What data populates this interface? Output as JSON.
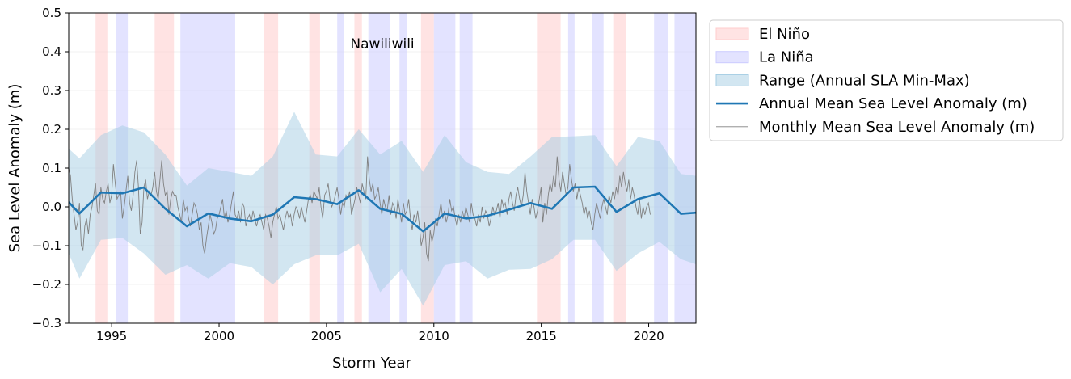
{
  "chart_data": {
    "type": "line",
    "annotation": "Nawiliwili",
    "xlabel": "Storm Year",
    "ylabel": "Sea Level Anomaly (m)",
    "xlim": [
      1993.0,
      2022.2
    ],
    "ylim": [
      -0.3,
      0.5
    ],
    "x_ticks": [
      1995,
      2000,
      2005,
      2010,
      2015,
      2020
    ],
    "y_ticks": [
      -0.3,
      -0.2,
      -0.1,
      0.0,
      0.1,
      0.2,
      0.3,
      0.4,
      0.5
    ],
    "grid": true,
    "legend_placement": "outside-right-top",
    "legend": [
      {
        "label": "El Niño",
        "kind": "patch",
        "color": "#ffcccc"
      },
      {
        "label": "La Niña",
        "kind": "patch",
        "color": "#ccccff"
      },
      {
        "label": "Range (Annual SLA Min-Max)",
        "kind": "patch",
        "color": "#a6cde4"
      },
      {
        "label": "Annual Mean Sea Level Anomaly (m)",
        "kind": "line",
        "color": "#1f77b4"
      },
      {
        "label": "Monthly Mean Sea Level Anomaly (m)",
        "kind": "thin-line",
        "color": "#808080"
      }
    ],
    "el_nino_periods": [
      [
        1994.25,
        1994.8
      ],
      [
        1997.0,
        1997.9
      ],
      [
        2002.1,
        2002.75
      ],
      [
        2004.2,
        2004.7
      ],
      [
        2006.3,
        2006.65
      ],
      [
        2009.4,
        2010.0
      ],
      [
        2014.8,
        2015.9
      ],
      [
        2018.35,
        2018.95
      ]
    ],
    "la_nina_periods": [
      [
        1995.2,
        1995.75
      ],
      [
        1998.2,
        2000.75
      ],
      [
        2005.5,
        2005.8
      ],
      [
        2006.95,
        2007.95
      ],
      [
        2008.4,
        2008.75
      ],
      [
        2010.0,
        2011.0
      ],
      [
        2011.2,
        2011.8
      ],
      [
        2016.25,
        2016.55
      ],
      [
        2017.35,
        2017.9
      ],
      [
        2020.25,
        2020.9
      ],
      [
        2021.2,
        2022.2
      ]
    ],
    "annual_mean": {
      "x": [
        1993.0,
        1993.5,
        1994.5,
        1995.5,
        1996.5,
        1997.5,
        1998.5,
        1999.5,
        2000.5,
        2001.5,
        2002.5,
        2003.5,
        2004.5,
        2005.5,
        2006.5,
        2007.5,
        2008.5,
        2009.5,
        2010.5,
        2011.5,
        2012.5,
        2013.5,
        2014.5,
        2015.5,
        2016.5,
        2017.5,
        2018.5,
        2019.5,
        2020.5,
        2021.5,
        2022.2
      ],
      "y": [
        0.012,
        -0.017,
        0.037,
        0.035,
        0.05,
        -0.005,
        -0.05,
        -0.017,
        -0.03,
        -0.037,
        -0.02,
        0.025,
        0.02,
        0.007,
        0.043,
        -0.005,
        -0.018,
        -0.063,
        -0.017,
        -0.03,
        -0.023,
        -0.007,
        0.01,
        -0.005,
        0.05,
        0.052,
        -0.013,
        0.02,
        0.035,
        -0.018,
        -0.015
      ]
    },
    "range_min_max": {
      "x": [
        1993.0,
        1993.5,
        1994.5,
        1995.5,
        1996.5,
        1997.5,
        1998.5,
        1999.5,
        2000.5,
        2001.5,
        2002.5,
        2003.5,
        2004.5,
        2005.5,
        2006.5,
        2007.5,
        2008.5,
        2009.5,
        2010.5,
        2011.5,
        2012.5,
        2013.5,
        2014.5,
        2015.5,
        2016.5,
        2017.5,
        2018.5,
        2019.5,
        2020.5,
        2021.5,
        2022.2
      ],
      "min": [
        -0.12,
        -0.185,
        -0.085,
        -0.08,
        -0.12,
        -0.175,
        -0.15,
        -0.185,
        -0.145,
        -0.155,
        -0.2,
        -0.148,
        -0.125,
        -0.125,
        -0.095,
        -0.22,
        -0.16,
        -0.255,
        -0.15,
        -0.14,
        -0.185,
        -0.162,
        -0.16,
        -0.135,
        -0.085,
        -0.085,
        -0.165,
        -0.12,
        -0.09,
        -0.135,
        -0.148
      ],
      "max": [
        0.15,
        0.125,
        0.185,
        0.21,
        0.192,
        0.135,
        0.055,
        0.1,
        0.09,
        0.08,
        0.13,
        0.245,
        0.135,
        0.13,
        0.2,
        0.135,
        0.17,
        0.09,
        0.185,
        0.115,
        0.09,
        0.085,
        0.13,
        0.18,
        0.182,
        0.185,
        0.105,
        0.18,
        0.17,
        0.085,
        0.08
      ]
    },
    "monthly_mean": {
      "x_start": 1993.0,
      "x_step": 0.0833,
      "y": [
        0.1,
        0.08,
        0.02,
        -0.02,
        -0.06,
        -0.04,
        0.01,
        -0.1,
        -0.11,
        -0.05,
        -0.03,
        -0.07,
        -0.02,
        0.0,
        0.03,
        0.06,
        -0.01,
        -0.02,
        0.05,
        0.02,
        0.01,
        0.04,
        0.06,
        0.01,
        0.03,
        0.11,
        0.06,
        0.02,
        0.03,
        0.04,
        -0.03,
        0.0,
        0.04,
        0.08,
        0.01,
        -0.01,
        0.03,
        0.09,
        0.12,
        0.05,
        -0.07,
        -0.04,
        0.05,
        0.07,
        0.02,
        0.04,
        0.03,
        0.05,
        0.09,
        0.04,
        0.02,
        0.07,
        0.12,
        0.06,
        0.03,
        0.04,
        -0.02,
        0.02,
        0.04,
        0.03,
        0.03,
        0.0,
        -0.02,
        -0.04,
        0.02,
        -0.01,
        0.0,
        -0.03,
        -0.05,
        -0.02,
        0.01,
        0.0,
        -0.02,
        -0.06,
        -0.04,
        -0.1,
        -0.12,
        -0.08,
        -0.05,
        -0.02,
        -0.04,
        -0.07,
        -0.06,
        -0.03,
        -0.02,
        0.0,
        0.02,
        -0.03,
        -0.01,
        -0.04,
        -0.02,
        0.01,
        0.04,
        -0.02,
        -0.03,
        -0.01,
        -0.04,
        0.01,
        0.0,
        -0.05,
        -0.03,
        -0.02,
        -0.04,
        -0.01,
        -0.03,
        -0.05,
        -0.03,
        -0.02,
        -0.04,
        -0.06,
        -0.02,
        -0.03,
        -0.05,
        -0.08,
        -0.04,
        -0.02,
        0.0,
        -0.03,
        -0.02,
        -0.04,
        -0.06,
        -0.03,
        -0.01,
        -0.03,
        -0.02,
        -0.05,
        -0.02,
        0.0,
        -0.01,
        -0.03,
        0.0,
        -0.02,
        -0.04,
        -0.01,
        0.02,
        0.03,
        0.01,
        0.04,
        0.03,
        0.02,
        0.05,
        0.0,
        -0.03,
        0.03,
        0.04,
        0.06,
        0.02,
        0.0,
        0.01,
        0.03,
        0.05,
        0.02,
        -0.02,
        0.01,
        0.0,
        0.03,
        0.02,
        0.04,
        -0.02,
        0.0,
        0.02,
        0.05,
        0.03,
        0.01,
        0.06,
        0.04,
        0.02,
        0.13,
        0.07,
        0.04,
        0.06,
        0.02,
        0.03,
        0.05,
        0.01,
        -0.02,
        0.02,
        0.0,
        -0.01,
        0.03,
        -0.02,
        0.01,
        0.0,
        -0.03,
        0.02,
        -0.01,
        -0.04,
        0.01,
        -0.02,
        -0.01,
        0.02,
        -0.03,
        -0.06,
        -0.02,
        -0.04,
        -0.01,
        -0.05,
        -0.1,
        -0.08,
        -0.04,
        -0.12,
        -0.14,
        -0.06,
        -0.09,
        -0.07,
        -0.03,
        -0.05,
        -0.02,
        0.01,
        -0.03,
        -0.01,
        -0.04,
        -0.02,
        0.02,
        -0.01,
        0.0,
        -0.03,
        -0.05,
        -0.02,
        -0.04,
        -0.01,
        -0.03,
        0.0,
        -0.02,
        -0.04,
        0.01,
        -0.02,
        -0.03,
        -0.05,
        -0.02,
        -0.04,
        0.0,
        -0.03,
        -0.01,
        -0.02,
        -0.05,
        -0.03,
        0.0,
        -0.02,
        -0.01,
        0.01,
        -0.03,
        0.02,
        0.0,
        0.01,
        -0.02,
        0.02,
        0.04,
        0.01,
        -0.01,
        0.03,
        0.05,
        0.02,
        0.0,
        0.03,
        0.09,
        0.04,
        0.01,
        -0.02,
        0.02,
        0.0,
        -0.03,
        -0.01,
        0.02,
        0.05,
        -0.04,
        0.01,
        -0.02,
        0.03,
        0.06,
        0.04,
        0.08,
        0.05,
        0.13,
        0.07,
        0.04,
        0.09,
        0.06,
        0.03,
        0.05,
        0.11,
        0.07,
        0.04,
        0.06,
        0.02,
        0.05,
        0.03,
        0.01,
        -0.02,
        0.0,
        -0.03,
        -0.01,
        -0.04,
        -0.06,
        -0.02,
        0.01,
        -0.01,
        -0.03,
        0.0,
        0.02,
        0.0,
        -0.02,
        0.03,
        0.01,
        0.04,
        0.02,
        0.05,
        0.03,
        0.08,
        0.05,
        0.09,
        0.06,
        0.04,
        0.07,
        0.02,
        0.05,
        0.03,
        0.0,
        -0.02,
        0.02,
        -0.03,
        0.0,
        -0.02,
        0.0,
        0.01,
        -0.02
      ]
    }
  }
}
